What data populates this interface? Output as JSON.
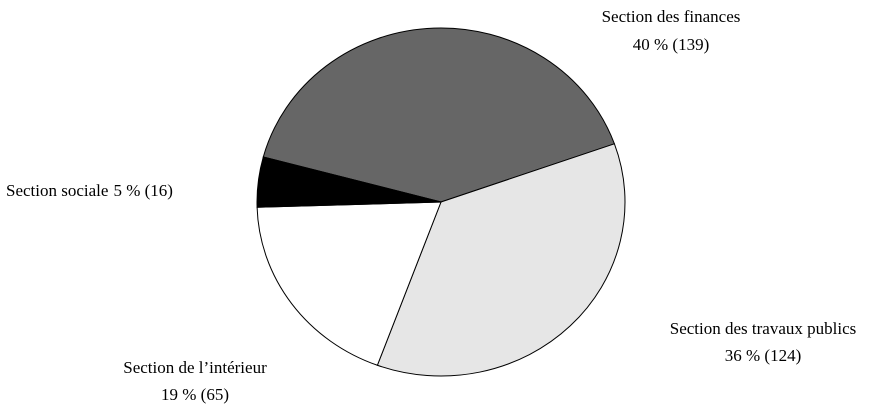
{
  "chart_data": {
    "type": "pie",
    "categories": [
      "Section des finances",
      "Section des travaux publics",
      "Section de l’intérieur",
      "Section sociale"
    ],
    "values": [
      139,
      124,
      65,
      16
    ],
    "value_labels": [
      "40 % (139)",
      "36 % (124)",
      "19 % (65)",
      "5 % (16)"
    ],
    "colors": [
      "#666666",
      "#e6e6e6",
      "#ffffff",
      "#000000"
    ]
  }
}
